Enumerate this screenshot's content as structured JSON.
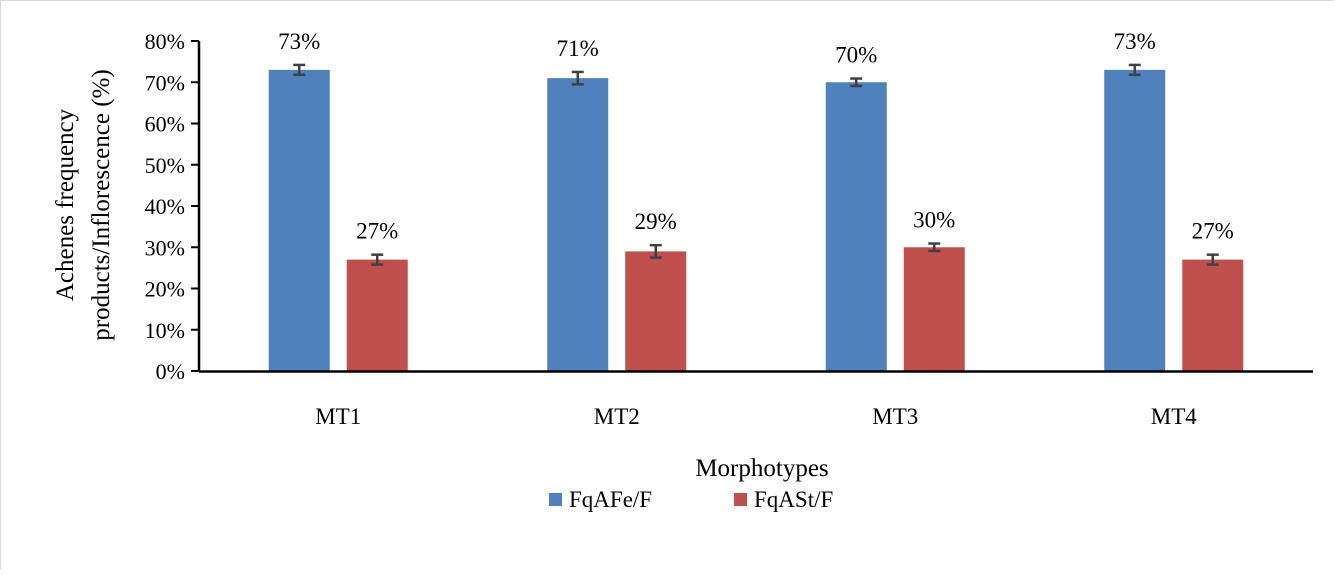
{
  "chart_data": {
    "type": "bar",
    "title": "",
    "xlabel": "Morphotypes",
    "ylabel_lines": [
      "Achenes frequency",
      "products/Inflorescence  (%)"
    ],
    "categories": [
      "MT1",
      "MT2",
      "MT3",
      "MT4"
    ],
    "ylim": [
      0,
      80
    ],
    "yticks": [
      "0%",
      "10%",
      "20%",
      "30%",
      "40%",
      "50%",
      "60%",
      "70%",
      "80%"
    ],
    "grid": false,
    "legend_position": "bottom",
    "series": [
      {
        "name": "FqAFe/F",
        "color": "#4f81bd",
        "values": [
          73,
          71,
          70,
          73
        ],
        "errors": [
          1.2,
          1.5,
          0.9,
          1.2
        ],
        "labels": [
          "73%",
          "71%",
          "70%",
          "73%"
        ]
      },
      {
        "name": "FqASt/F",
        "color": "#c0504d",
        "values": [
          27,
          29,
          30,
          27
        ],
        "errors": [
          1.2,
          1.5,
          0.9,
          1.2
        ],
        "labels": [
          "27%",
          "29%",
          "30%",
          "27%"
        ]
      }
    ]
  }
}
